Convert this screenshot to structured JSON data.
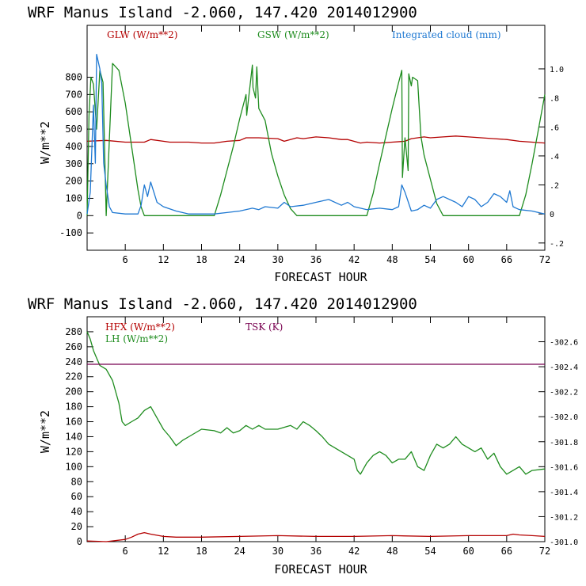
{
  "chart_data": [
    {
      "type": "line",
      "title": "WRF   Manus Island  -2.060, 147.420  2014012900",
      "xlabel": "FORECAST HOUR",
      "ylabel": "W/m**2",
      "xlim": [
        0,
        72
      ],
      "ylim": [
        -200,
        1100
      ],
      "y2lim": [
        -0.25,
        1.3
      ],
      "x_ticks": [
        6,
        12,
        18,
        24,
        30,
        36,
        42,
        48,
        54,
        60,
        66,
        72
      ],
      "y_ticks": [
        -100,
        0,
        100,
        200,
        300,
        400,
        500,
        600,
        700,
        800
      ],
      "y2_ticks": [
        -0.2,
        0,
        0.2,
        0.4,
        0.6,
        0.8,
        1.0
      ],
      "y2_tick_labels": [
        "-.2",
        "0",
        ".2",
        ".4",
        ".6",
        ".8",
        "1.0"
      ],
      "series": [
        {
          "name": "GLW (W/m**2)",
          "axis": "left",
          "color": "#b40000",
          "x": [
            0,
            3,
            6,
            9,
            10,
            12,
            13,
            16,
            18,
            20,
            22,
            24,
            25,
            27,
            30,
            31,
            33,
            34,
            36,
            38,
            40,
            41,
            43,
            44,
            46,
            48,
            50,
            51,
            53,
            54,
            56,
            58,
            60,
            62,
            64,
            66,
            68,
            70,
            72
          ],
          "y": [
            430,
            435,
            425,
            425,
            440,
            430,
            425,
            425,
            420,
            420,
            430,
            435,
            450,
            450,
            445,
            430,
            450,
            445,
            455,
            450,
            440,
            440,
            420,
            425,
            420,
            425,
            430,
            445,
            455,
            450,
            455,
            460,
            455,
            450,
            445,
            440,
            430,
            425,
            420
          ]
        },
        {
          "name": "GSW (W/m**2)",
          "axis": "left",
          "color": "#1e8c1e",
          "x": [
            0,
            0.3,
            0.6,
            1,
            1.5,
            2,
            2.5,
            3,
            4,
            5,
            6,
            7,
            8,
            8.5,
            9,
            20,
            21,
            22,
            23,
            24,
            25,
            25.1,
            26,
            26.1,
            26.5,
            26.7,
            27,
            28,
            29,
            30,
            31,
            32,
            33,
            44,
            45,
            46,
            47,
            48,
            49,
            49.5,
            49.6,
            50,
            50.5,
            50.6,
            51,
            51.2,
            52,
            52.5,
            53,
            55,
            56,
            68,
            69,
            70,
            71,
            72
          ],
          "y": [
            0,
            580,
            800,
            760,
            500,
            840,
            770,
            0,
            880,
            840,
            650,
            400,
            150,
            50,
            0,
            0,
            120,
            260,
            400,
            560,
            700,
            580,
            870,
            740,
            680,
            860,
            620,
            550,
            360,
            230,
            120,
            40,
            0,
            0,
            130,
            300,
            460,
            620,
            770,
            840,
            220,
            450,
            260,
            820,
            750,
            800,
            780,
            460,
            350,
            70,
            0,
            0,
            120,
            300,
            500,
            700
          ]
        },
        {
          "name": "Integrated cloud (mm)",
          "axis": "right",
          "color": "#1e78d2",
          "x": [
            0,
            0.5,
            1,
            1.3,
            1.5,
            2,
            2.3,
            2.6,
            3,
            3.5,
            4,
            6,
            8,
            8.5,
            9,
            9.5,
            10,
            11,
            12,
            14,
            16,
            18,
            20,
            22,
            24,
            26,
            27,
            28,
            30,
            31,
            32,
            34,
            36,
            38,
            40,
            41,
            42,
            44,
            46,
            48,
            49,
            49.5,
            50,
            51,
            52,
            53,
            54,
            55,
            56,
            58,
            59,
            60,
            61,
            62,
            63,
            64,
            65,
            66,
            66.5,
            67,
            67.5,
            68,
            70,
            72
          ],
          "y": [
            0,
            0.15,
            0.75,
            0.35,
            1.1,
            1.0,
            0.9,
            0.35,
            0.2,
            0.05,
            0.01,
            0,
            0,
            0.06,
            0.2,
            0.12,
            0.22,
            0.08,
            0.05,
            0.02,
            0,
            0,
            0,
            0.01,
            0.02,
            0.04,
            0.03,
            0.05,
            0.04,
            0.08,
            0.05,
            0.06,
            0.08,
            0.1,
            0.06,
            0.08,
            0.05,
            0.03,
            0.04,
            0.03,
            0.05,
            0.2,
            0.15,
            0.02,
            0.03,
            0.06,
            0.04,
            0.1,
            0.12,
            0.08,
            0.05,
            0.12,
            0.1,
            0.05,
            0.08,
            0.14,
            0.12,
            0.08,
            0.16,
            0.05,
            0.04,
            0.03,
            0.02,
            0.0
          ]
        }
      ]
    },
    {
      "type": "line",
      "title": "WRF   Manus Island  -2.060, 147.420  2014012900",
      "xlabel": "FORECAST HOUR",
      "ylabel": "W/m**2",
      "xlim": [
        0,
        72
      ],
      "ylim": [
        0,
        300
      ],
      "y2lim": [
        301.0,
        302.8
      ],
      "x_ticks": [
        6,
        12,
        18,
        24,
        30,
        36,
        42,
        48,
        54,
        60,
        66,
        72
      ],
      "y_ticks": [
        0,
        20,
        40,
        60,
        80,
        100,
        120,
        140,
        160,
        180,
        200,
        220,
        240,
        260,
        280
      ],
      "y2_ticks": [
        301.0,
        301.2,
        301.4,
        301.6,
        301.8,
        302.0,
        302.2,
        302.4,
        302.6
      ],
      "y2_tick_labels": [
        "-301.0",
        "-301.2",
        "-301.4",
        "-301.6",
        "-301.8",
        "-302.0",
        "-302.2",
        "-302.4",
        "-302.6"
      ],
      "series": [
        {
          "name": "HFX (W/m**2)",
          "axis": "left",
          "color": "#b40000",
          "x": [
            0,
            3,
            6,
            7,
            8,
            9,
            10,
            12,
            14,
            18,
            24,
            30,
            36,
            42,
            48,
            54,
            60,
            66,
            67,
            68,
            70,
            72
          ],
          "y": [
            1,
            0,
            3,
            6,
            10,
            12,
            10,
            7,
            6,
            6,
            7,
            8,
            7,
            7,
            8,
            7,
            8,
            8,
            10,
            9,
            8,
            7
          ]
        },
        {
          "name": "LH (W/m**2)",
          "axis": "left",
          "color": "#1e8c1e",
          "x": [
            0,
            0.5,
            1,
            1.5,
            2,
            3,
            4,
            5,
            5.5,
            6,
            7,
            8,
            9,
            10,
            11,
            12,
            13,
            14,
            15,
            16,
            18,
            20,
            21,
            22,
            23,
            24,
            25,
            26,
            27,
            28,
            30,
            32,
            33,
            34,
            35,
            36,
            37,
            38,
            40,
            42,
            42.5,
            43,
            44,
            45,
            46,
            47,
            48,
            49,
            50,
            51,
            52,
            53,
            54,
            55,
            56,
            57,
            58,
            59,
            60,
            61,
            62,
            63,
            64,
            65,
            66,
            67,
            68,
            69,
            70,
            72
          ],
          "y": [
            280,
            270,
            255,
            245,
            235,
            230,
            215,
            185,
            160,
            155,
            160,
            165,
            175,
            180,
            165,
            150,
            140,
            128,
            135,
            140,
            150,
            148,
            145,
            152,
            145,
            148,
            155,
            150,
            155,
            150,
            150,
            155,
            150,
            160,
            155,
            148,
            140,
            130,
            120,
            110,
            95,
            90,
            105,
            115,
            120,
            115,
            105,
            110,
            110,
            120,
            100,
            95,
            115,
            130,
            125,
            130,
            140,
            130,
            125,
            120,
            125,
            110,
            118,
            100,
            90,
            95,
            100,
            90,
            95,
            97
          ]
        },
        {
          "name": "TSK (K)",
          "axis": "right",
          "color": "#780050",
          "x": [
            0,
            72
          ],
          "y": [
            302.42,
            302.42
          ]
        }
      ]
    }
  ]
}
